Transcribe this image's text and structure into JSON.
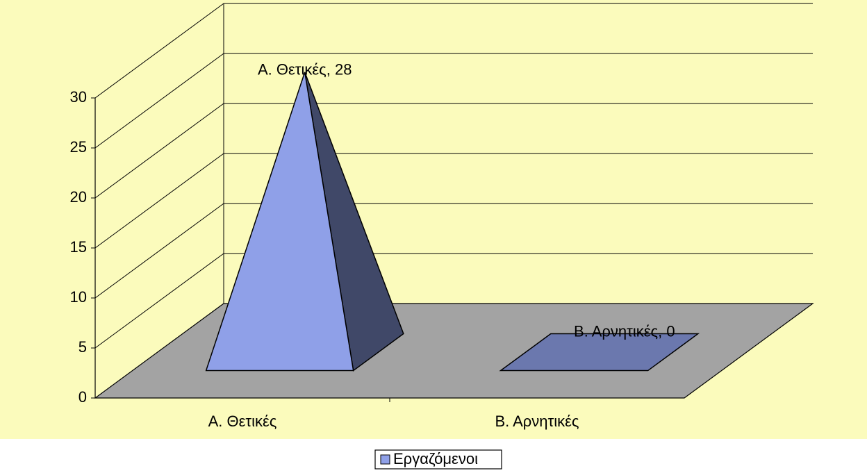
{
  "chart_data": {
    "type": "pyramid3d",
    "categories": [
      "Α. Θετικές",
      "Β. Αρνητικές"
    ],
    "series": [
      {
        "name": "Εργαζόμενοι",
        "color": "#8fa0e8",
        "values": [
          28,
          0
        ],
        "value_labels": [
          "Α. Θετικές, 28",
          "Β. Αρνητικές, 0"
        ]
      }
    ],
    "ylim": [
      0,
      30
    ],
    "yticks": [
      0,
      5,
      10,
      15,
      20,
      25,
      30
    ],
    "grid": true,
    "legend": "bottom"
  }
}
